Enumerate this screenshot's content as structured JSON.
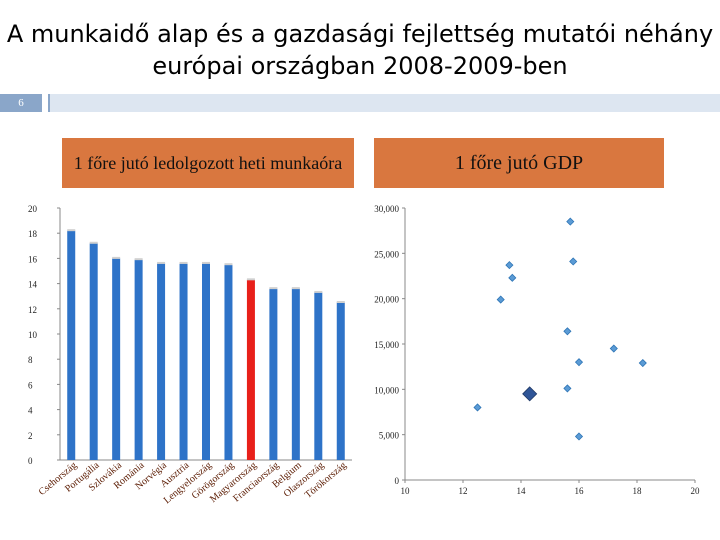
{
  "slide": {
    "title": "A munkaidő alap és a gazdasági fejlettség mutatói néhány európai országban 2008-2009-ben",
    "number": "6"
  },
  "chart_data": [
    {
      "type": "bar",
      "title": "1 főre jutó ledolgozott heti munkaóra",
      "categories": [
        "Csehország",
        "Portugália",
        "Szlovákia",
        "Románia",
        "Norvégia",
        "Ausztria",
        "Lengyelország",
        "Görögország",
        "Magyarország",
        "Franciaország",
        "Belgium",
        "Olaszország",
        "Törökország"
      ],
      "values": [
        18.2,
        17.2,
        16.0,
        15.9,
        15.6,
        15.6,
        15.6,
        15.5,
        14.3,
        13.6,
        13.6,
        13.3,
        12.5
      ],
      "highlight_index": 8,
      "colors": {
        "bar": "#2e73c8",
        "highlight": "#e8201a"
      },
      "ylim": [
        0,
        20
      ],
      "yticks": [
        "0",
        "2",
        "4",
        "6",
        "8",
        "10",
        "12",
        "14",
        "16",
        "18",
        "20"
      ],
      "grid": false
    },
    {
      "type": "scatter",
      "title": "1 főre jutó GDP",
      "points": [
        {
          "x": 15.7,
          "y": 28500
        },
        {
          "x": 13.6,
          "y": 23700
        },
        {
          "x": 13.7,
          "y": 22300
        },
        {
          "x": 15.8,
          "y": 24100
        },
        {
          "x": 13.3,
          "y": 19900
        },
        {
          "x": 15.6,
          "y": 16400
        },
        {
          "x": 17.2,
          "y": 14500
        },
        {
          "x": 16.0,
          "y": 13000
        },
        {
          "x": 18.2,
          "y": 12900
        },
        {
          "x": 15.6,
          "y": 10100
        },
        {
          "x": 14.3,
          "y": 9500,
          "highlight": true
        },
        {
          "x": 12.5,
          "y": 8000
        },
        {
          "x": 16.0,
          "y": 4800
        }
      ],
      "xlim": [
        10,
        20
      ],
      "ylim": [
        0,
        30000
      ],
      "xticks": [
        "10",
        "12",
        "14",
        "16",
        "18",
        "20"
      ],
      "yticks": [
        "0",
        "5,000",
        "10,000",
        "15,000",
        "20,000",
        "25,000",
        "30,000"
      ],
      "colors": {
        "marker": "#5b9bd5",
        "highlight": "#2f5597"
      },
      "grid": false
    }
  ]
}
